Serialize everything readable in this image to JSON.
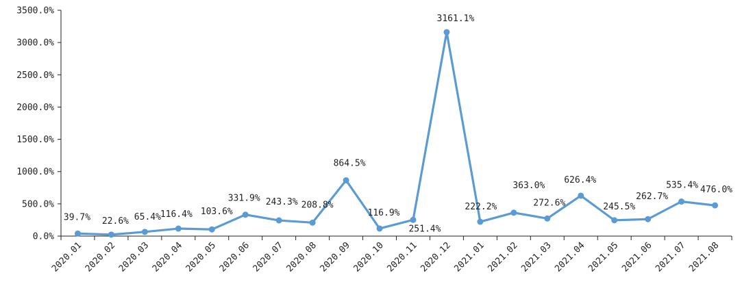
{
  "chart_data": {
    "type": "line",
    "title": "",
    "xlabel": "",
    "ylabel": "",
    "ylim": [
      0,
      3500
    ],
    "y_ticks": [
      "0.0%",
      "500.0%",
      "1000.0%",
      "1500.0%",
      "2000.0%",
      "2500.0%",
      "3000.0%",
      "3500.0%"
    ],
    "categories": [
      "2020.01",
      "2020.02",
      "2020.03",
      "2020.04",
      "2020.05",
      "2020.06",
      "2020.07",
      "2020.08",
      "2020.09",
      "2020.10",
      "2020.11",
      "2020.12",
      "2021.01",
      "2021.02",
      "2021.03",
      "2021.04",
      "2021.05",
      "2021.06",
      "2021.07",
      "2021.08"
    ],
    "values": [
      39.7,
      22.6,
      65.4,
      116.4,
      103.6,
      331.9,
      243.3,
      208.8,
      864.5,
      116.9,
      251.4,
      3161.1,
      222.2,
      363.0,
      272.6,
      626.4,
      245.5,
      262.7,
      535.4,
      476.0
    ],
    "data_labels": [
      "39.7%",
      "22.6%",
      "65.4%",
      "116.4%",
      "103.6%",
      "331.9%",
      "243.3%",
      "208.8%",
      "864.5%",
      "116.9%",
      "251.4%",
      "3161.1%",
      "222.2%",
      "363.0%",
      "272.6%",
      "626.4%",
      "245.5%",
      "262.7%",
      "535.4%",
      "476.0%"
    ],
    "grid": false,
    "legend": "none",
    "line_color": "#5B9BD5"
  }
}
